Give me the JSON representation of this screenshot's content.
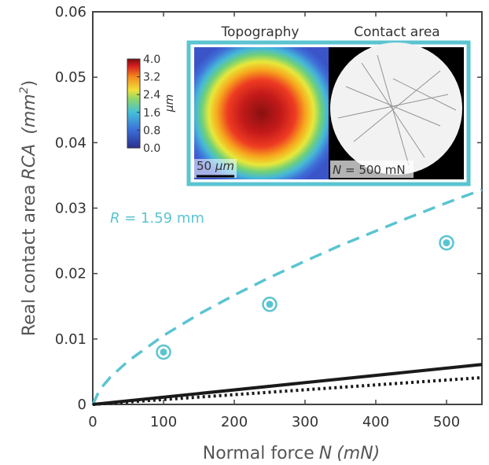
{
  "chart_data": {
    "type": "line",
    "xlim": [
      0,
      550
    ],
    "ylim": [
      0,
      0.06
    ],
    "xticks": [
      0,
      100,
      200,
      300,
      400,
      500
    ],
    "yticks": [
      0,
      0.01,
      0.02,
      0.03,
      0.04,
      0.05,
      0.06
    ],
    "x_label": {
      "text": "Normal force",
      "symbol": "N",
      "unit": "(mN)"
    },
    "y_label": {
      "text": "Real contact area",
      "symbol": "RCA",
      "unit_open": "(mm",
      "unit_power": "2",
      "unit_close": ")"
    },
    "annotation": {
      "symbol": "R",
      "text": " = 1.59 mm",
      "color": "#5bc4d1"
    },
    "series": [
      {
        "type": "line",
        "color": "#5bc4d1",
        "dash": "dashed",
        "x": [
          0,
          10,
          25,
          50,
          100,
          150,
          200,
          250,
          300,
          350,
          400,
          450,
          500,
          550
        ],
        "values": [
          0,
          0.00227,
          0.00418,
          0.00663,
          0.01052,
          0.0138,
          0.0167,
          0.0194,
          0.0219,
          0.0243,
          0.0265,
          0.0287,
          0.0308,
          0.0328
        ]
      },
      {
        "type": "line",
        "color": "#1a1a1a",
        "dash": "solid",
        "x": [
          0,
          550
        ],
        "values": [
          0,
          0.0061
        ]
      },
      {
        "type": "line",
        "color": "#1a1a1a",
        "dash": "dotted",
        "x": [
          0,
          550
        ],
        "values": [
          0,
          0.0041
        ]
      },
      {
        "type": "scatter",
        "color": "#5bc4d1",
        "x": [
          100,
          250,
          500
        ],
        "values": [
          0.008,
          0.0153,
          0.0247
        ]
      }
    ],
    "inset": {
      "left_title": "Topography",
      "right_title": "Contact area",
      "scale_bar": {
        "number": "50",
        "unit": "μm"
      },
      "force_label": {
        "symbol": "N",
        "text": " = 500 mN"
      },
      "colorbar": {
        "label": "μm",
        "lim": [
          0,
          4
        ],
        "ticks": [
          {
            "value": 4,
            "label": "4.0"
          },
          {
            "value": 3.2,
            "label": "3.2"
          },
          {
            "value": 2.4,
            "label": "2.4"
          },
          {
            "value": 1.6,
            "label": "1.6"
          },
          {
            "value": 0.8,
            "label": "0.8"
          },
          {
            "value": 0,
            "label": "0.0"
          }
        ]
      }
    }
  }
}
